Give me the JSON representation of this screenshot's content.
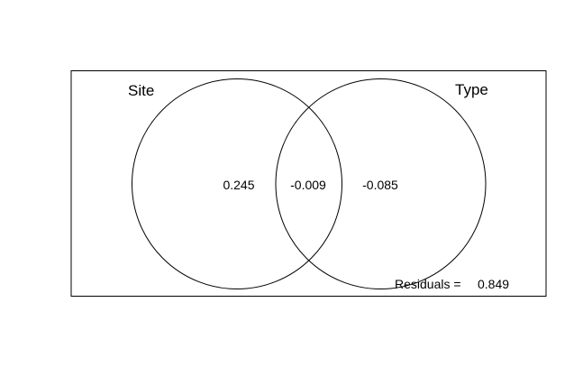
{
  "sets": [
    {
      "label": "Site"
    },
    {
      "label": "Type"
    }
  ],
  "regions": {
    "site_only": "0.245",
    "intersection": "-0.009",
    "type_only": "-0.085"
  },
  "residuals": {
    "label": "Residuals =",
    "value": "0.849"
  },
  "colors": {
    "stroke": "#000000",
    "background": "#ffffff"
  }
}
